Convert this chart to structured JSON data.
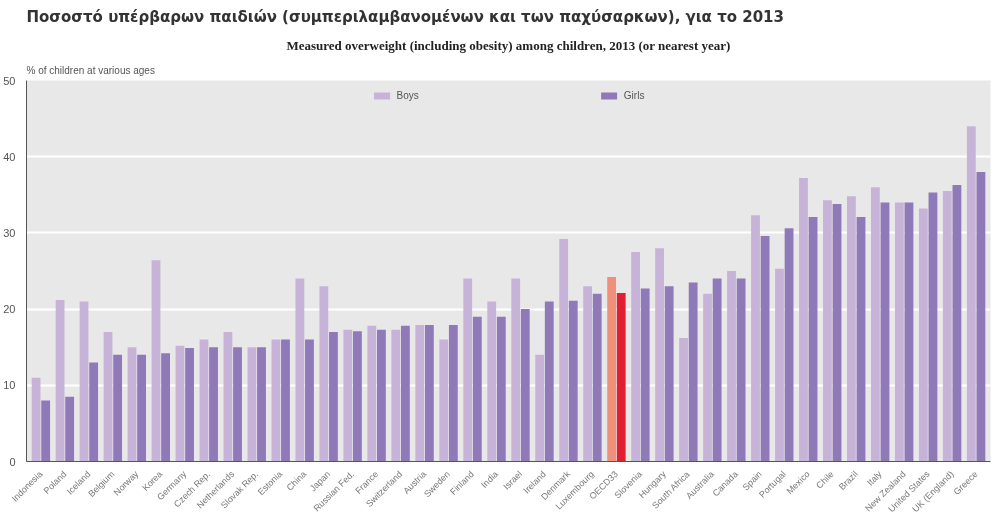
{
  "chart_data": {
    "type": "bar",
    "title": "Ποσοστό υπέρβαρων παιδιών (συμπεριλαμβανομένων και των παχύσαρκων), για το 2013",
    "subtitle": "Measured overweight (including obesity) among children, 2013 (or nearest year)",
    "ylabel": "% of children at various ages",
    "categories": [
      "Indonesia",
      "Poland",
      "Iceland",
      "Belgium",
      "Norway",
      "Korea",
      "Germany",
      "Czech Rep.",
      "Netherlands",
      "Slovak Rep.",
      "Estonia",
      "China",
      "Japan",
      "Russian Fed.",
      "France",
      "Switzerland",
      "Austria",
      "Sweden",
      "Finland",
      "India",
      "Israel",
      "Ireland",
      "Denmark",
      "Luxembourg",
      "OECD33",
      "Slovenia",
      "Hungary",
      "South Africa",
      "Australia",
      "Canada",
      "Spain",
      "Portugal",
      "Mexico",
      "Chile",
      "Brazil",
      "Italy",
      "New Zealand",
      "United States",
      "UK (England)",
      "Greece"
    ],
    "series": [
      {
        "name": "Boys",
        "values": [
          11,
          21.2,
          21,
          17,
          15,
          26.4,
          15.2,
          16,
          17,
          15,
          16,
          24,
          23,
          17.3,
          17.8,
          17.3,
          17.9,
          16,
          24,
          21,
          24,
          14,
          29.2,
          23,
          24.2,
          27.5,
          28,
          16.2,
          22,
          25,
          32.3,
          25.3,
          37.2,
          34.3,
          34.8,
          36,
          34,
          33.2,
          35.5,
          44
        ],
        "colors": [
          "#c7b3d8",
          "#c7b3d8",
          "#c7b3d8",
          "#c7b3d8",
          "#c7b3d8",
          "#c7b3d8",
          "#c7b3d8",
          "#c7b3d8",
          "#c7b3d8",
          "#c7b3d8",
          "#c7b3d8",
          "#c7b3d8",
          "#c7b3d8",
          "#c7b3d8",
          "#c7b3d8",
          "#c7b3d8",
          "#c7b3d8",
          "#c7b3d8",
          "#c7b3d8",
          "#c7b3d8",
          "#c7b3d8",
          "#c7b3d8",
          "#c7b3d8",
          "#c7b3d8",
          "#f0907a",
          "#c7b3d8",
          "#c7b3d8",
          "#c7b3d8",
          "#c7b3d8",
          "#c7b3d8",
          "#c7b3d8",
          "#c7b3d8",
          "#c7b3d8",
          "#c7b3d8",
          "#c7b3d8",
          "#c7b3d8",
          "#c7b3d8",
          "#c7b3d8",
          "#c7b3d8",
          "#c7b3d8"
        ]
      },
      {
        "name": "Girls",
        "values": [
          8,
          8.5,
          13,
          14,
          14,
          14.2,
          14.9,
          15,
          15,
          15,
          16,
          16,
          17,
          17.1,
          17.3,
          17.8,
          17.9,
          17.9,
          19,
          19,
          20,
          21,
          21.1,
          22,
          22.1,
          22.7,
          23,
          23.5,
          24,
          24,
          29.6,
          30.6,
          32.1,
          33.8,
          32.1,
          34,
          34,
          35.3,
          36.3,
          38
        ],
        "colors": [
          "#9079b8",
          "#9079b8",
          "#9079b8",
          "#9079b8",
          "#9079b8",
          "#9079b8",
          "#9079b8",
          "#9079b8",
          "#9079b8",
          "#9079b8",
          "#9079b8",
          "#9079b8",
          "#9079b8",
          "#9079b8",
          "#9079b8",
          "#9079b8",
          "#9079b8",
          "#9079b8",
          "#9079b8",
          "#9079b8",
          "#9079b8",
          "#9079b8",
          "#9079b8",
          "#9079b8",
          "#e02030",
          "#9079b8",
          "#9079b8",
          "#9079b8",
          "#9079b8",
          "#9079b8",
          "#9079b8",
          "#9079b8",
          "#9079b8",
          "#9079b8",
          "#9079b8",
          "#9079b8",
          "#9079b8",
          "#9079b8",
          "#9079b8",
          "#9079b8"
        ]
      }
    ],
    "ylim": [
      0,
      50
    ],
    "yticks": [
      0,
      10,
      20,
      30,
      40,
      50
    ],
    "grid": "y",
    "legend": "top"
  }
}
